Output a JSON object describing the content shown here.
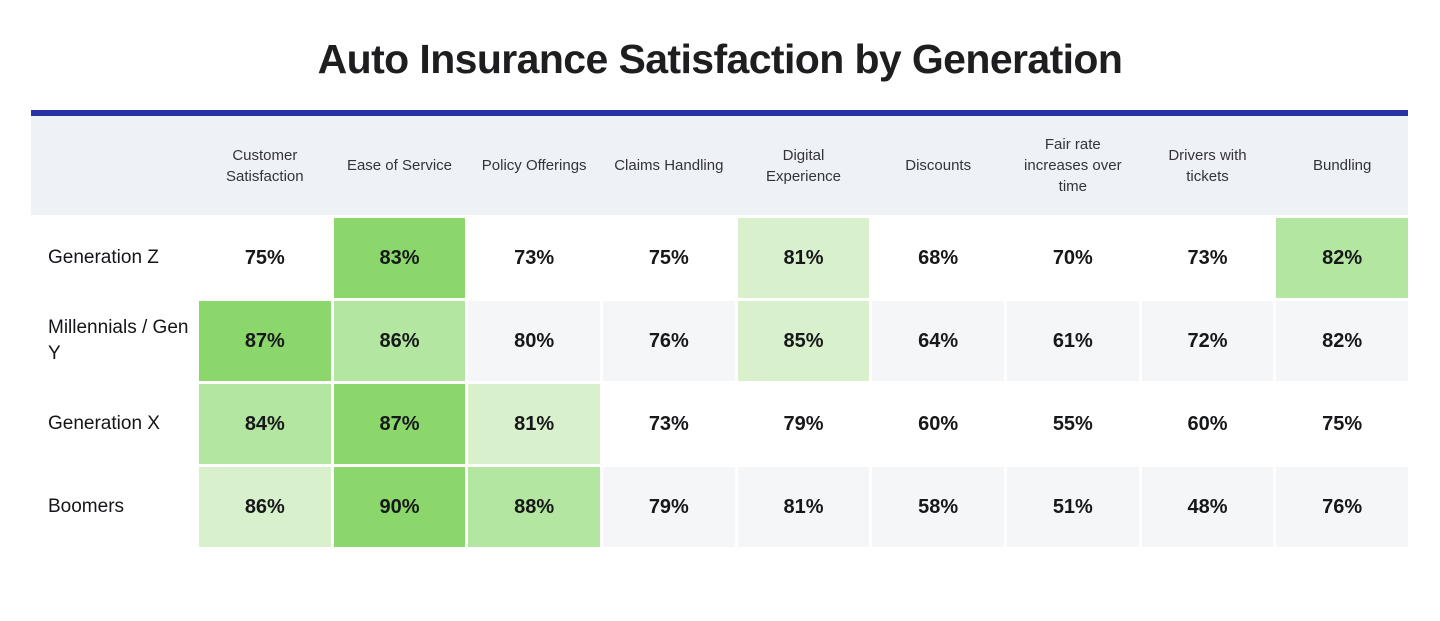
{
  "title": "Auto Insurance Satisfaction by Generation",
  "colors": {
    "accent_line": "#2733a2",
    "header_bg": "#eef1f6",
    "stripe_bg": "#f5f6f7",
    "green_high": "#8bd76c",
    "green_mid": "#b3e6a0",
    "green_low": "#d9f0cc",
    "title_text": "#1e1e20",
    "header_text": "#32343a",
    "cell_text": "#17181a"
  },
  "chart_data": {
    "type": "heatmap",
    "title": "Auto Insurance Satisfaction by Generation",
    "unit": "%",
    "columns": [
      "Customer Satisfaction",
      "Ease of Service",
      "Policy Offerings",
      "Claims Handling",
      "Digital Experience",
      "Discounts",
      "Fair rate increases over time",
      "Drivers with tickets",
      "Bundling"
    ],
    "rows": [
      "Generation Z",
      "Millennials / Gen Y",
      "Generation X",
      "Boomers"
    ],
    "values_pct": [
      [
        75,
        83,
        73,
        75,
        81,
        68,
        70,
        73,
        82
      ],
      [
        87,
        86,
        80,
        76,
        85,
        64,
        61,
        72,
        82
      ],
      [
        84,
        87,
        81,
        73,
        79,
        60,
        55,
        60,
        75
      ],
      [
        86,
        90,
        88,
        79,
        81,
        58,
        51,
        48,
        76
      ]
    ],
    "labels": [
      [
        "75%",
        "83%",
        "73%",
        "75%",
        "81%",
        "68%",
        "70%",
        "73%",
        "82%"
      ],
      [
        "87%",
        "86%",
        "80%",
        "76%",
        "85%",
        "64%",
        "61%",
        "72%",
        "82%"
      ],
      [
        "84%",
        "87%",
        "81%",
        "73%",
        "79%",
        "60%",
        "55%",
        "60%",
        "75%"
      ],
      [
        "86%",
        "90%",
        "88%",
        "79%",
        "81%",
        "58%",
        "51%",
        "48%",
        "76%"
      ]
    ],
    "highlight_rank": [
      [
        0,
        1,
        0,
        0,
        3,
        0,
        0,
        0,
        2
      ],
      [
        1,
        2,
        0,
        0,
        3,
        0,
        0,
        0,
        0
      ],
      [
        2,
        1,
        3,
        0,
        0,
        0,
        0,
        0,
        0
      ],
      [
        3,
        1,
        2,
        0,
        0,
        0,
        0,
        0,
        0
      ]
    ],
    "striped_row_indexes": [
      1,
      3
    ],
    "legend_note": "top 3 values per row shaded green, darker = higher rank"
  }
}
